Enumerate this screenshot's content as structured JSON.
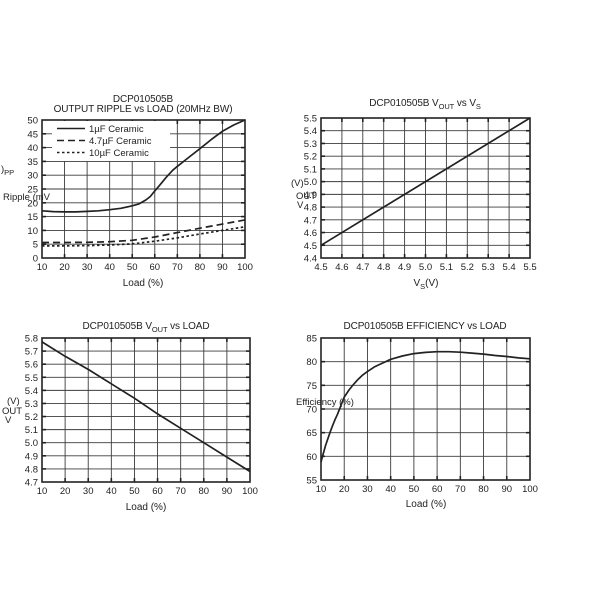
{
  "chart_data": [
    {
      "type": "line",
      "title_lines": [
        "DCP010505B",
        "OUTPUT RIPPLE vs LOAD (20MHz BW)"
      ],
      "xlabel": "Load (%)",
      "ylabel_fragments": [
        ")_{PP}",
        "Ripple (mV"
      ],
      "x": {
        "min": 10,
        "max": 100,
        "step": 10,
        "tick_labels": [
          "10",
          "20",
          "30",
          "40",
          "50",
          "60",
          "70",
          "80",
          "90",
          "100"
        ]
      },
      "y": {
        "min": 0,
        "max": 50,
        "step": 5,
        "tick_labels": [
          "0",
          "5",
          "10",
          "15",
          "20",
          "25",
          "30",
          "35",
          "40",
          "45",
          "50"
        ]
      },
      "legend": {
        "items": [
          {
            "label": "1µF Ceramic",
            "dash": "solid"
          },
          {
            "label": "4.7µF Ceramic",
            "dash": "long"
          },
          {
            "label": "10µF Ceramic",
            "dash": "short"
          }
        ]
      },
      "series": [
        {
          "name": "1µF Ceramic",
          "dash": "solid",
          "points": [
            [
              10,
              17.1
            ],
            [
              15,
              16.8
            ],
            [
              20,
              16.7
            ],
            [
              25,
              16.7
            ],
            [
              30,
              16.9
            ],
            [
              35,
              17.1
            ],
            [
              40,
              17.5
            ],
            [
              45,
              18.0
            ],
            [
              50,
              18.9
            ],
            [
              53,
              19.6
            ],
            [
              56,
              21.0
            ],
            [
              58,
              22.3
            ],
            [
              60,
              24.3
            ],
            [
              62,
              26.2
            ],
            [
              65,
              29.2
            ],
            [
              68,
              31.8
            ],
            [
              70,
              33.2
            ],
            [
              75,
              36.4
            ],
            [
              80,
              39.6
            ],
            [
              85,
              42.9
            ],
            [
              90,
              45.9
            ],
            [
              95,
              48.2
            ],
            [
              100,
              50.0
            ]
          ]
        },
        {
          "name": "4.7µF Ceramic",
          "dash": "long",
          "points": [
            [
              10,
              5.6
            ],
            [
              20,
              5.6
            ],
            [
              30,
              5.7
            ],
            [
              40,
              5.9
            ],
            [
              50,
              6.4
            ],
            [
              60,
              7.6
            ],
            [
              70,
              9.2
            ],
            [
              80,
              10.8
            ],
            [
              90,
              12.3
            ],
            [
              100,
              13.8
            ]
          ]
        },
        {
          "name": "10µF Ceramic",
          "dash": "short",
          "points": [
            [
              10,
              4.4
            ],
            [
              20,
              4.4
            ],
            [
              30,
              4.5
            ],
            [
              40,
              4.7
            ],
            [
              50,
              5.1
            ],
            [
              60,
              6.1
            ],
            [
              70,
              7.3
            ],
            [
              80,
              8.7
            ],
            [
              90,
              10.0
            ],
            [
              100,
              11.3
            ]
          ]
        }
      ]
    },
    {
      "type": "line",
      "title_lines": [
        "DCP010505B V_{OUT} vs V_{S}"
      ],
      "xlabel": "V_{S}(V)",
      "ylabel_fragments": [
        "(V)",
        "OUT",
        "V"
      ],
      "x": {
        "min": 4.5,
        "max": 5.5,
        "step": 0.1,
        "tick_labels": [
          "4.5",
          "4.6",
          "4.7",
          "4.8",
          "4.9",
          "5.0",
          "5.1",
          "5.2",
          "5.3",
          "5.4",
          "5.5"
        ]
      },
      "y": {
        "min": 4.4,
        "max": 5.5,
        "step": 0.1,
        "tick_labels": [
          "4.4",
          "4.5",
          "4.6",
          "4.7",
          "4.8",
          "4.9",
          "5.0",
          "5.1",
          "5.2",
          "5.3",
          "5.4",
          "5.5"
        ]
      },
      "series": [
        {
          "name": "VOUT vs VS",
          "dash": "solid",
          "points": [
            [
              4.5,
              4.5
            ],
            [
              5.5,
              5.5
            ]
          ]
        }
      ]
    },
    {
      "type": "line",
      "title_lines": [
        "DCP010505B V_{OUT} vs LOAD"
      ],
      "xlabel": "Load (%)",
      "ylabel_fragments": [
        "(V)",
        "OUT",
        "V"
      ],
      "x": {
        "min": 10,
        "max": 100,
        "step": 10,
        "tick_labels": [
          "10",
          "20",
          "30",
          "40",
          "50",
          "60",
          "70",
          "80",
          "90",
          "100"
        ]
      },
      "y": {
        "min": 4.7,
        "max": 5.8,
        "step": 0.1,
        "tick_labels": [
          "4.7",
          "4.8",
          "4.9",
          "5.0",
          "5.1",
          "5.2",
          "5.3",
          "5.4",
          "5.5",
          "5.6",
          "5.7",
          "5.8"
        ]
      },
      "series": [
        {
          "name": "VOUT vs Load",
          "dash": "solid",
          "points": [
            [
              10,
              5.77
            ],
            [
              20,
              5.66
            ],
            [
              30,
              5.56
            ],
            [
              40,
              5.45
            ],
            [
              50,
              5.34
            ],
            [
              60,
              5.22
            ],
            [
              70,
              5.11
            ],
            [
              80,
              5.0
            ],
            [
              90,
              4.89
            ],
            [
              100,
              4.78
            ]
          ]
        }
      ]
    },
    {
      "type": "line",
      "title_lines": [
        "DCP010505B EFFICIENCY vs LOAD"
      ],
      "xlabel": "Load (%)",
      "ylabel_fragments": [
        "Efficiency (%)"
      ],
      "x": {
        "min": 10,
        "max": 100,
        "step": 10,
        "tick_labels": [
          "10",
          "20",
          "30",
          "40",
          "50",
          "60",
          "70",
          "80",
          "90",
          "100"
        ]
      },
      "y": {
        "min": 55,
        "max": 85,
        "step": 5,
        "tick_labels": [
          "55",
          "60",
          "65",
          "70",
          "75",
          "80",
          "85"
        ]
      },
      "series": [
        {
          "name": "Efficiency",
          "dash": "solid",
          "points": [
            [
              10,
              58.8
            ],
            [
              11,
              60.6
            ],
            [
              12,
              62.3
            ],
            [
              13,
              63.8
            ],
            [
              14,
              65.2
            ],
            [
              15,
              66.5
            ],
            [
              16,
              67.7
            ],
            [
              17,
              68.8
            ],
            [
              18,
              70.0
            ],
            [
              19,
              71.3
            ],
            [
              20,
              72.5
            ],
            [
              22,
              74.0
            ],
            [
              24,
              75.2
            ],
            [
              26,
              76.3
            ],
            [
              28,
              77.2
            ],
            [
              30,
              77.9
            ],
            [
              33,
              78.9
            ],
            [
              36,
              79.6
            ],
            [
              40,
              80.5
            ],
            [
              45,
              81.2
            ],
            [
              50,
              81.7
            ],
            [
              55,
              81.95
            ],
            [
              60,
              82.1
            ],
            [
              65,
              82.1
            ],
            [
              70,
              82.0
            ],
            [
              75,
              81.8
            ],
            [
              80,
              81.6
            ],
            [
              85,
              81.3
            ],
            [
              90,
              81.1
            ],
            [
              95,
              80.8
            ],
            [
              100,
              80.6
            ]
          ]
        }
      ]
    }
  ],
  "colors": {
    "line": "#222222",
    "grid": "#3c3c3c",
    "background": "#ffffff"
  }
}
